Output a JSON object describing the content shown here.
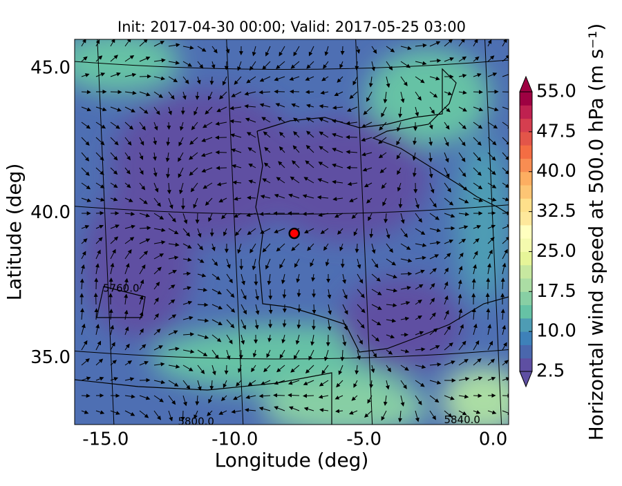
{
  "chart_data": {
    "type": "map",
    "title": "Init: 2017-04-30 00:00; Valid: 2017-05-25 03:00",
    "x_label": "Longitude (deg)",
    "y_label": "Latitude (deg)",
    "xlim": [
      -16.2,
      0.6
    ],
    "ylim": [
      32.7,
      46.0
    ],
    "xticks": [
      {
        "value": -15,
        "label": "-15.0"
      },
      {
        "value": -10,
        "label": "-10.0"
      },
      {
        "value": -5,
        "label": "-5.0"
      },
      {
        "value": 0,
        "label": "0.0"
      }
    ],
    "yticks": [
      {
        "value": 35,
        "label": "35.0"
      },
      {
        "value": 40,
        "label": "40.0"
      },
      {
        "value": 45,
        "label": "45.0"
      }
    ],
    "contour_labels": [
      {
        "text": "5760.0",
        "lon": -14.4,
        "lat": 37.4
      },
      {
        "text": "5800.0",
        "lon": -11.5,
        "lat": 32.8
      },
      {
        "text": "5840.0",
        "lon": -1.2,
        "lat": 32.85
      }
    ],
    "marker": {
      "lon": -7.7,
      "lat": 39.3,
      "color": "#ff0000"
    },
    "colorbar": {
      "label": "Horizontal wind speed at 500.0 hPa (m s⁻¹)",
      "levels": [
        2.5,
        5,
        7.5,
        10,
        12.5,
        15,
        17.5,
        20,
        22.5,
        25,
        27.5,
        30,
        32.5,
        35,
        37.5,
        40,
        42.5,
        45,
        47.5,
        50,
        52.5,
        55
      ],
      "colors": [
        "#5e4fa2",
        "#4a67ad",
        "#3e81b9",
        "#4e9cb4",
        "#66c2a5",
        "#88cfa4",
        "#abdda4",
        "#c7e8a0",
        "#e6f598",
        "#f4faae",
        "#ffffbf",
        "#fee89b",
        "#fee08b",
        "#fdc574",
        "#fdae61",
        "#f88d52",
        "#f46d43",
        "#e35549",
        "#d53e4f",
        "#bf2150",
        "#9e0142"
      ],
      "ticks": [
        2.5,
        {
          "value": 10,
          "label": "10.0"
        },
        {
          "value": 17.5,
          "label": "17.5"
        },
        {
          "value": 25,
          "label": "25.0"
        },
        {
          "value": 32.5,
          "label": "32.5"
        },
        {
          "value": 40,
          "label": "40.0"
        },
        {
          "value": 47.5,
          "label": "47.5"
        },
        {
          "value": 55,
          "label": "55.0"
        }
      ]
    }
  }
}
